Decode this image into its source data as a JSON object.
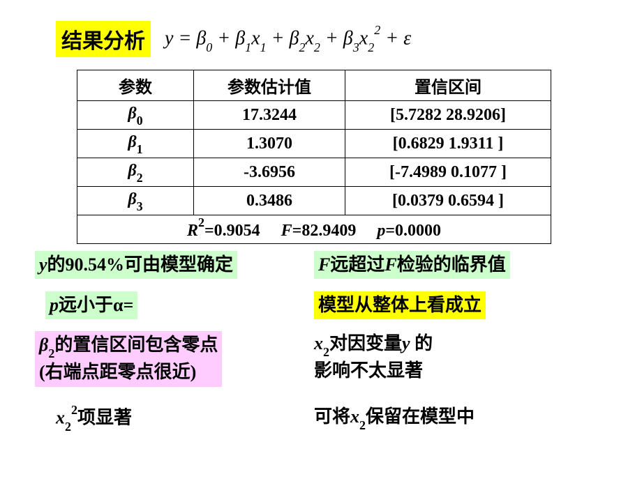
{
  "header": {
    "title": "结果分析",
    "equation_html": "<span class='italic'>y</span> = <span class='italic beta'>β</span><span class='sub'>0</span> + <span class='italic beta'>β</span><span class='sub'>1</span><span class='italic'>x</span><span class='sub'>1</span> + <span class='italic beta'>β</span><span class='sub'>2</span><span class='italic'>x</span><span class='sub'>2</span> + <span class='italic beta'>β</span><span class='sub'>3</span><span class='italic'>x</span><span class='sub'>2</span><span class='sup'>2</span> + <span class='italic'>ε</span>"
  },
  "table": {
    "headers": [
      "参数",
      "参数估计值",
      "置信区间"
    ],
    "rows": [
      {
        "param_html": "<span class='italic beta'>β</span><span class='sub'>0</span>",
        "est": "17.3244",
        "ci": "[5.7282   28.9206]"
      },
      {
        "param_html": "<span class='italic beta'>β</span><span class='sub'>1</span>",
        "est": "1.3070",
        "ci": "[0.6829   1.9311 ]"
      },
      {
        "param_html": "<span class='italic beta'>β</span><span class='sub'>2</span>",
        "est": "-3.6956",
        "ci": "[-7.4989   0.1077 ]"
      },
      {
        "param_html": "<span class='italic beta'>β</span><span class='sub'>3</span>",
        "est": "0.3486",
        "ci": "[0.0379   0.6594 ]"
      }
    ],
    "stats_html": "<span class='italic'>R</span><span class='sup'>2</span>=0.9054&nbsp;&nbsp;&nbsp;&nbsp;&nbsp;<span class='italic'>F</span>=82.9409&nbsp;&nbsp;&nbsp;&nbsp;&nbsp;<span class='italic'>p</span>=0.0000"
  },
  "annotations": {
    "a1_html": "<span class='italic'>y</span>的90.54%可由模型确定",
    "a2_html": "<span class='italic'>F</span>远超过<span class='italic'>F</span>检验的临界值",
    "a3_html": "<span class='italic'>p</span>远小于α=",
    "a4": "模型从整体上看成立",
    "a5_html": "<span class='italic beta'>β</span><span class='sub'>2</span>的置信区间包含零点<br>(右端点距零点很近)",
    "a6_html": "<span class='italic'>x</span><span class='sub'>2</span>对因变量<span class='italic'>y</span> 的<br>影响不太显著",
    "a7_html": "<span class='italic'>x</span><span class='sub'>2</span><span class='sup'>2</span>项显著",
    "a8_html": "可将<span class='italic'>x</span><span class='sub'>2</span>保留在模型中"
  },
  "styles": {
    "yellow": "#ffff00",
    "green": "#ccffcc",
    "pink": "#ffccff"
  }
}
